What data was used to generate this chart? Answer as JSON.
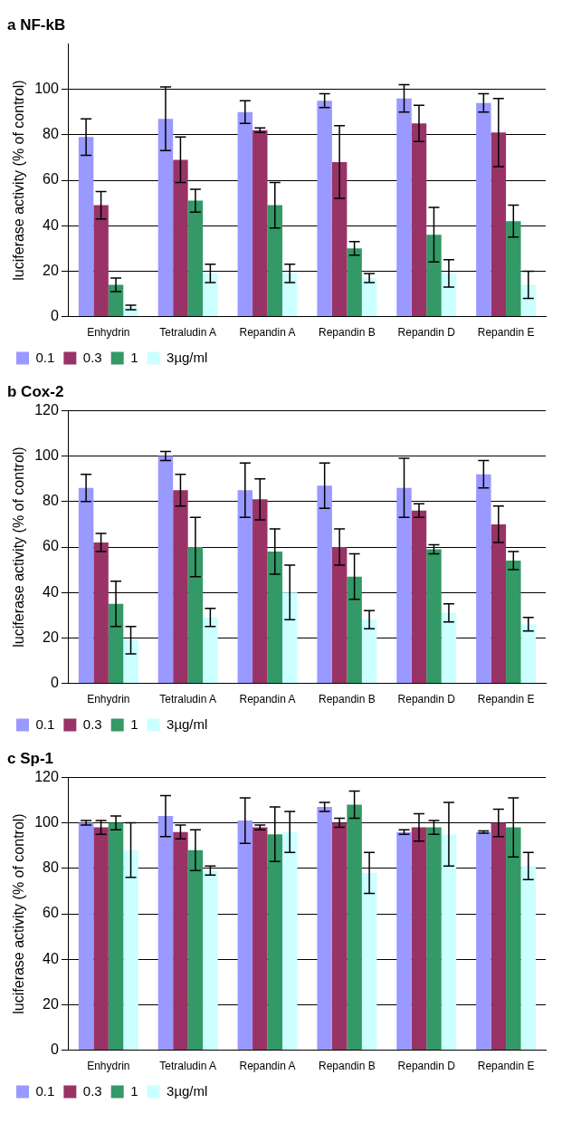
{
  "chart_data": [
    {
      "type": "bar",
      "title": "a NF-kB",
      "ylabel": "luciferase activity (% of control)",
      "categories": [
        "Enhydrin",
        "Tetraludin A",
        "Repandin A",
        "Repandin B",
        "Repandin D",
        "Repandin E"
      ],
      "series": [
        {
          "name": "0.1",
          "color": "#9999ff",
          "values": [
            79,
            87,
            90,
            95,
            96,
            94
          ],
          "errors": [
            8,
            14,
            5,
            3,
            6,
            4
          ]
        },
        {
          "name": "0.3",
          "color": "#993366",
          "values": [
            49,
            69,
            82,
            68,
            85,
            81
          ],
          "errors": [
            6,
            10,
            1,
            16,
            8,
            15
          ]
        },
        {
          "name": "1",
          "color": "#339966",
          "values": [
            14,
            51,
            49,
            30,
            36,
            42
          ],
          "errors": [
            3,
            5,
            10,
            3,
            12,
            7
          ]
        },
        {
          "name": "3µg/ml",
          "color": "#ccffff",
          "values": [
            4,
            19,
            19,
            17,
            19,
            14
          ],
          "errors": [
            1,
            4,
            4,
            2,
            6,
            6
          ]
        }
      ],
      "ylim": [
        0,
        120
      ],
      "yticks": [
        0,
        20,
        40,
        60,
        80,
        100
      ],
      "grid": "y",
      "legend": "bottom"
    },
    {
      "type": "bar",
      "title": "b Cox-2",
      "ylabel": "luciferase activity (% of control)",
      "categories": [
        "Enhydrin",
        "Tetraludin A",
        "Repandin A",
        "Repandin B",
        "Repandin D",
        "Repandin E"
      ],
      "series": [
        {
          "name": "0.1",
          "color": "#9999ff",
          "values": [
            86,
            100,
            85,
            87,
            86,
            92
          ],
          "errors": [
            6,
            2,
            12,
            10,
            13,
            6
          ]
        },
        {
          "name": "0.3",
          "color": "#993366",
          "values": [
            62,
            85,
            81,
            60,
            76,
            70
          ],
          "errors": [
            4,
            7,
            9,
            8,
            3,
            8
          ]
        },
        {
          "name": "1",
          "color": "#339966",
          "values": [
            35,
            60,
            58,
            47,
            59,
            54
          ],
          "errors": [
            10,
            13,
            10,
            10,
            2,
            4
          ]
        },
        {
          "name": "3µg/ml",
          "color": "#ccffff",
          "values": [
            19,
            29,
            40,
            28,
            31,
            26
          ],
          "errors": [
            6,
            4,
            12,
            4,
            4,
            3
          ]
        }
      ],
      "ylim": [
        0,
        120
      ],
      "yticks": [
        0,
        20,
        40,
        60,
        80,
        100,
        120
      ],
      "grid": "y",
      "legend": "bottom"
    },
    {
      "type": "bar",
      "title": "c Sp-1",
      "ylabel": "luciferase activity (% of control)",
      "categories": [
        "Enhydrin",
        "Tetraludin A",
        "Repandin A",
        "Repandin B",
        "Repandin D",
        "Repandin E"
      ],
      "series": [
        {
          "name": "0.1",
          "color": "#9999ff",
          "values": [
            100,
            103,
            101,
            107,
            96,
            96
          ],
          "errors": [
            1,
            9,
            10,
            2,
            1,
            0.5
          ]
        },
        {
          "name": "0.3",
          "color": "#993366",
          "values": [
            98,
            96,
            98,
            100,
            98,
            100
          ],
          "errors": [
            3,
            3,
            1,
            2,
            6,
            6
          ]
        },
        {
          "name": "1",
          "color": "#339966",
          "values": [
            100,
            88,
            95,
            108,
            98,
            98
          ],
          "errors": [
            3,
            9,
            12,
            6,
            3,
            13
          ]
        },
        {
          "name": "3µg/ml",
          "color": "#ccffff",
          "values": [
            88,
            79,
            96,
            78,
            95,
            81
          ],
          "errors": [
            12,
            2,
            9,
            9,
            14,
            6
          ]
        }
      ],
      "ylim": [
        0,
        120
      ],
      "yticks": [
        0,
        20,
        40,
        60,
        80,
        100,
        120
      ],
      "grid": "y",
      "legend": "bottom"
    }
  ]
}
